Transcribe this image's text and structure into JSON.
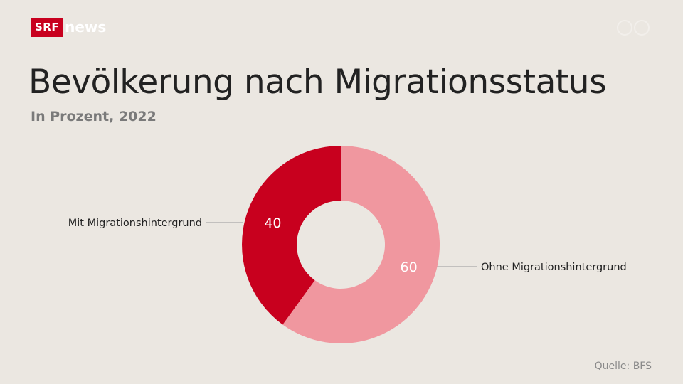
{
  "brand": {
    "logo_box": "SRF",
    "logo_word": "news",
    "accent_color": "#c8001e"
  },
  "chart_data": {
    "type": "pie",
    "donut": true,
    "title": "Bevölkerung nach Migrationsstatus",
    "subtitle": "In Prozent, 2022",
    "slices": [
      {
        "label": "Ohne Migrationshintergrund",
        "value": 60,
        "value_label": "60",
        "color": "#f0979f"
      },
      {
        "label": "Mit Migrationshintergrund",
        "value": 40,
        "value_label": "40",
        "color": "#c8001e"
      }
    ],
    "source": "Quelle: BFS"
  }
}
